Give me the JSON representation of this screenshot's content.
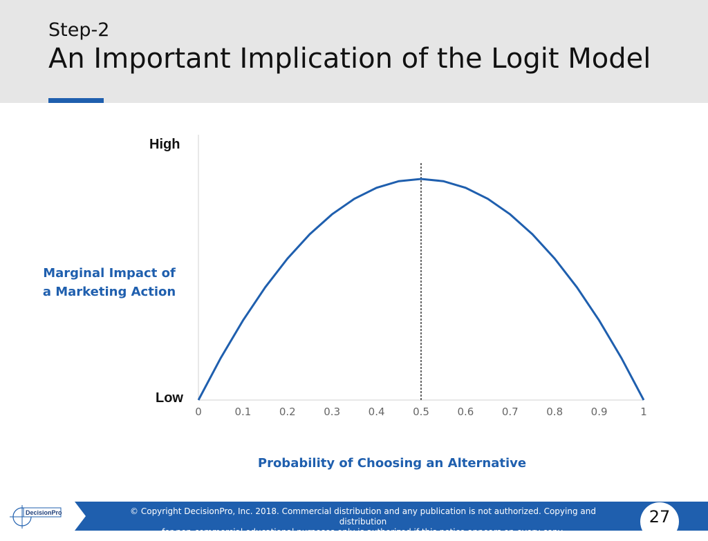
{
  "header": {
    "step": "Step-2",
    "title": "An Important Implication of the Logit Model"
  },
  "chart_data": {
    "type": "line",
    "xlabel": "Probability of Choosing an Alternative",
    "ylabel": "Marginal Impact of a Marketing Action",
    "y_axis_labels": {
      "high": "High",
      "low": "Low"
    },
    "x_ticks": [
      "0",
      "0.1",
      "0.2",
      "0.3",
      "0.4",
      "0.5",
      "0.6",
      "0.7",
      "0.8",
      "0.9",
      "1"
    ],
    "xlim": [
      0,
      1
    ],
    "ylim": [
      0,
      0.3
    ],
    "series": [
      {
        "x": [
          0,
          0.05,
          0.1,
          0.15,
          0.2,
          0.25,
          0.3,
          0.35,
          0.4,
          0.45,
          0.5,
          0.55,
          0.6,
          0.65,
          0.7,
          0.75,
          0.8,
          0.85,
          0.9,
          0.95,
          1
        ],
        "values": [
          0,
          0.0475,
          0.09,
          0.1275,
          0.16,
          0.1875,
          0.21,
          0.2275,
          0.24,
          0.2475,
          0.25,
          0.2475,
          0.24,
          0.2275,
          0.21,
          0.1875,
          0.16,
          0.1275,
          0.09,
          0.0475,
          0
        ],
        "color": "#1f5fae"
      }
    ],
    "reference_line": {
      "x": 0.5,
      "style": "dashed",
      "color": "#111111"
    },
    "grid": false
  },
  "footer": {
    "logo_text": "DecisionPro",
    "copyright_line1": "© Copyright DecisionPro, Inc.  2018. Commercial distribution and any publication is not authorized. Copying and distribution",
    "copyright_line2": "for non-commercial educational purposes only is authorized if this notice appears on every copy.",
    "page_number": "27"
  },
  "colors": {
    "accent": "#1f5fae",
    "header_bg": "#e6e6e6"
  }
}
